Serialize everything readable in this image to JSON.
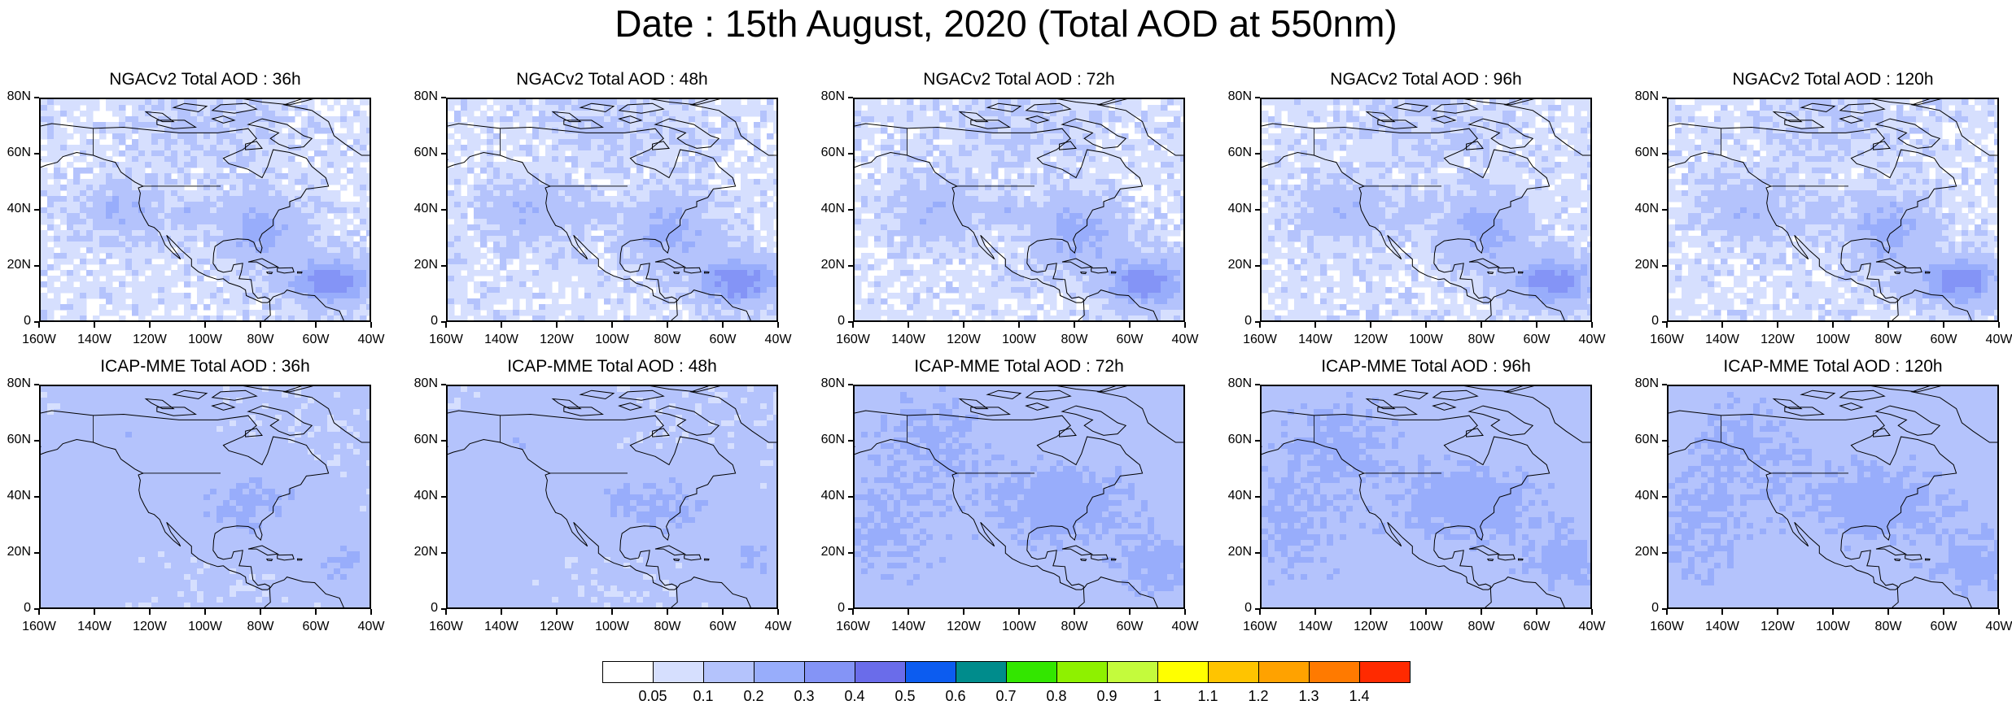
{
  "title": "Date : 15th August, 2020 (Total AOD at 550nm)",
  "panels": [
    {
      "title": "NGACv2 Total AOD : 36h",
      "row": "NGACv2",
      "hour": 36
    },
    {
      "title": "NGACv2 Total AOD : 48h",
      "row": "NGACv2",
      "hour": 48
    },
    {
      "title": "NGACv2 Total AOD : 72h",
      "row": "NGACv2",
      "hour": 72
    },
    {
      "title": "NGACv2 Total AOD : 96h",
      "row": "NGACv2",
      "hour": 96
    },
    {
      "title": "NGACv2 Total AOD : 120h",
      "row": "NGACv2",
      "hour": 120
    },
    {
      "title": "ICAP-MME Total AOD : 36h",
      "row": "ICAP-MME",
      "hour": 36
    },
    {
      "title": "ICAP-MME Total AOD : 48h",
      "row": "ICAP-MME",
      "hour": 48
    },
    {
      "title": "ICAP-MME Total AOD : 72h",
      "row": "ICAP-MME",
      "hour": 72
    },
    {
      "title": "ICAP-MME Total AOD : 96h",
      "row": "ICAP-MME",
      "hour": 96
    },
    {
      "title": "ICAP-MME Total AOD : 120h",
      "row": "ICAP-MME",
      "hour": 120
    }
  ],
  "lat_labels": [
    "80N",
    "60N",
    "40N",
    "20N",
    "0"
  ],
  "lon_labels": [
    "160W",
    "140W",
    "120W",
    "100W",
    "80W",
    "60W",
    "40W"
  ],
  "colorbar": {
    "labels": [
      "0.05",
      "0.1",
      "0.2",
      "0.3",
      "0.4",
      "0.5",
      "0.6",
      "0.7",
      "0.8",
      "0.9",
      "1",
      "1.1",
      "1.2",
      "1.3",
      "1.4"
    ],
    "colors": [
      "#ffffff",
      "#d6dffe",
      "#b4c3fc",
      "#98adfb",
      "#8494f6",
      "#6a6cea",
      "#0c5cf0",
      "#008c8c",
      "#33e600",
      "#8ef100",
      "#c4fb3c",
      "#ffff00",
      "#ffc400",
      "#ffa200",
      "#ff7a00",
      "#ff2a00"
    ]
  }
}
